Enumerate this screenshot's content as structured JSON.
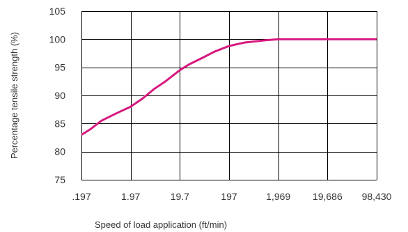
{
  "chart_data": {
    "type": "line",
    "title": "",
    "xlabel": "Speed of load application (ft/min)",
    "ylabel": "Percentage tensile strength (%)",
    "x_scale": "log",
    "x_ticks": [
      0.197,
      1.97,
      19.7,
      197,
      1969,
      19686,
      98430
    ],
    "x_tick_labels": [
      ".197",
      "1.97",
      "19.7",
      "197",
      "1,969",
      "19,686",
      "98,430"
    ],
    "ylim": [
      75,
      105
    ],
    "y_ticks": [
      75,
      80,
      85,
      90,
      95,
      100,
      105
    ],
    "y_tick_labels": [
      "75",
      "80",
      "85",
      "90",
      "95",
      "100",
      "105"
    ],
    "grid": true,
    "legend": "none",
    "series": [
      {
        "color": "#d6197f",
        "points": [
          [
            0.197,
            83.0
          ],
          [
            0.3,
            84.0
          ],
          [
            0.5,
            85.5
          ],
          [
            1.0,
            86.8
          ],
          [
            1.97,
            88.0
          ],
          [
            3.5,
            89.5
          ],
          [
            6.0,
            91.2
          ],
          [
            10.0,
            92.5
          ],
          [
            19.7,
            94.5
          ],
          [
            30,
            95.5
          ],
          [
            60,
            96.8
          ],
          [
            100,
            97.8
          ],
          [
            197,
            98.8
          ],
          [
            400,
            99.4
          ],
          [
            1000,
            99.8
          ],
          [
            1969,
            100.0
          ],
          [
            5000,
            100.0
          ],
          [
            19686,
            100.0
          ],
          [
            98430,
            100.0
          ]
        ]
      }
    ]
  }
}
